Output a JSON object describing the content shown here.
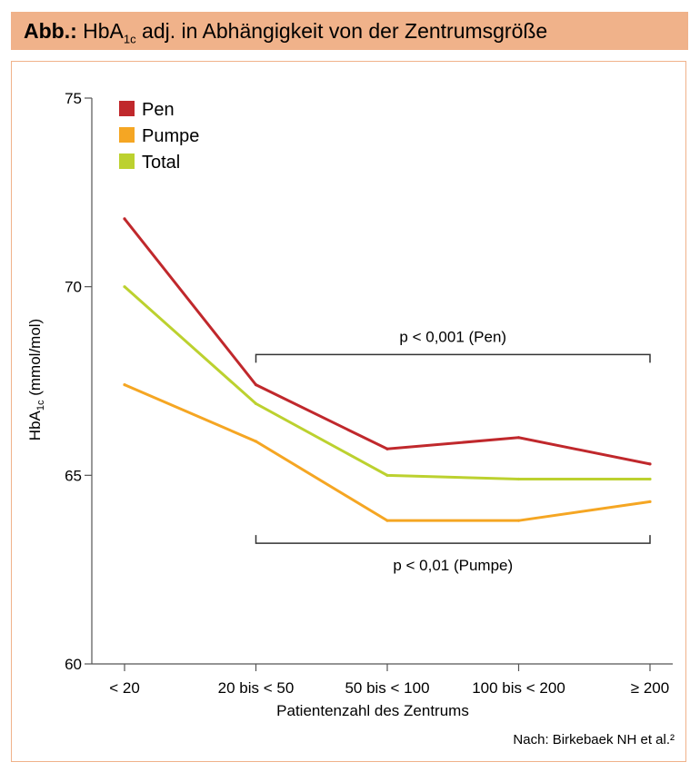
{
  "header": {
    "abb": "Abb.:",
    "title_pre": "HbA",
    "title_sub": "1c",
    "title_post": " adj. in Abhängigkeit von der Zentrumsgröße"
  },
  "source": "Nach: Birkebaek NH et al.²",
  "colors": {
    "pen": "#c0282c",
    "pumpe": "#f5a623",
    "total": "#bcd12f",
    "header_bg": "#f0b28a"
  },
  "chart_data": {
    "type": "line",
    "categories": [
      "< 20",
      "20 bis < 50",
      "50 bis < 100",
      "100 bis < 200",
      "≥ 200"
    ],
    "series": [
      {
        "name": "Pen",
        "color": "#c0282c",
        "values": [
          71.8,
          67.4,
          65.7,
          66.0,
          65.3
        ]
      },
      {
        "name": "Pumpe",
        "color": "#f5a623",
        "values": [
          67.4,
          65.9,
          63.8,
          63.8,
          64.3
        ]
      },
      {
        "name": "Total",
        "color": "#bcd12f",
        "values": [
          70.0,
          66.9,
          65.0,
          64.9,
          64.9
        ]
      }
    ],
    "ylim": [
      60,
      75
    ],
    "yticks": [
      60,
      65,
      70,
      75
    ],
    "ylabel_pre": "HbA",
    "ylabel_sub": "1c",
    "ylabel_post": " (mmol/mol)",
    "xlabel": "Patientenzahl des Zentrums",
    "legend_position": "top-left",
    "annotations": [
      {
        "text": "p < 0,001 (Pen)",
        "from_category": 1,
        "to_category": 4,
        "y": 68.2,
        "placement": "above"
      },
      {
        "text": "p < 0,01 (Pumpe)",
        "from_category": 1,
        "to_category": 4,
        "y": 63.2,
        "placement": "below"
      }
    ]
  }
}
